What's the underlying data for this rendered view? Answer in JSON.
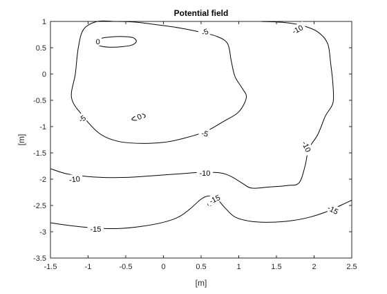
{
  "chart_data": {
    "type": "contour",
    "title": "Potential field",
    "xlabel": "[m]",
    "ylabel": "[m]",
    "xlim": [
      -1.5,
      2.5
    ],
    "ylim": [
      -3.5,
      1
    ],
    "xticks": [
      -1.5,
      -1,
      -0.5,
      0,
      0.5,
      1,
      1.5,
      2,
      2.5
    ],
    "yticks": [
      1,
      0.5,
      0,
      -0.5,
      -1,
      -1.5,
      -2,
      -2.5,
      -3,
      -3.5
    ],
    "xtick_labels": [
      "-1.5",
      "-1",
      "-0.5",
      "0",
      "0.5",
      "1",
      "1.5",
      "2",
      "2.5"
    ],
    "ytick_labels": [
      "1",
      "0.5",
      "0",
      "-0.5",
      "-1",
      "-1.5",
      "-2",
      "-2.5",
      "-3",
      "-3.5"
    ],
    "grid": false,
    "contours": [
      {
        "level": -5,
        "closed": true,
        "points": [
          [
            -0.88,
            1.0
          ],
          [
            -1.06,
            0.85
          ],
          [
            -1.13,
            0.5
          ],
          [
            -1.17,
            0.0
          ],
          [
            -1.22,
            -0.45
          ],
          [
            -1.08,
            -0.78
          ],
          [
            -0.85,
            -1.13
          ],
          [
            -0.6,
            -1.28
          ],
          [
            -0.3,
            -1.32
          ],
          [
            0.0,
            -1.3
          ],
          [
            0.25,
            -1.23
          ],
          [
            0.55,
            -1.1
          ],
          [
            0.8,
            -0.9
          ],
          [
            1.0,
            -0.72
          ],
          [
            1.1,
            -0.45
          ],
          [
            1.05,
            -0.28
          ],
          [
            0.95,
            -0.05
          ],
          [
            0.9,
            0.25
          ],
          [
            0.85,
            0.58
          ],
          [
            0.7,
            0.72
          ],
          [
            0.45,
            0.81
          ],
          [
            0.2,
            0.88
          ],
          [
            -0.1,
            0.94
          ],
          [
            -0.4,
            0.99
          ],
          [
            -0.65,
            1.0
          ]
        ]
      },
      {
        "level": -10,
        "closed": false,
        "points": [
          [
            -1.5,
            -1.8
          ],
          [
            -1.28,
            -1.9
          ],
          [
            -1.0,
            -1.95
          ],
          [
            -0.7,
            -1.97
          ],
          [
            -0.4,
            -1.96
          ],
          [
            -0.1,
            -1.93
          ],
          [
            0.2,
            -1.9
          ],
          [
            0.5,
            -1.87
          ],
          [
            0.75,
            -1.88
          ],
          [
            0.9,
            -1.95
          ],
          [
            1.05,
            -2.08
          ],
          [
            1.17,
            -2.17
          ],
          [
            1.4,
            -2.15
          ],
          [
            1.65,
            -2.12
          ],
          [
            1.8,
            -2.07
          ],
          [
            1.88,
            -1.75
          ],
          [
            1.93,
            -1.42
          ],
          [
            2.05,
            -1.15
          ],
          [
            2.15,
            -0.8
          ],
          [
            2.25,
            -0.55
          ],
          [
            2.25,
            -0.2
          ],
          [
            2.22,
            0.2
          ],
          [
            2.18,
            0.58
          ],
          [
            2.05,
            0.8
          ],
          [
            1.85,
            0.92
          ],
          [
            1.6,
            0.98
          ],
          [
            1.3,
            1.0
          ]
        ]
      },
      {
        "level": -15,
        "closed": false,
        "points": [
          [
            -1.5,
            -2.83
          ],
          [
            -1.2,
            -2.89
          ],
          [
            -0.9,
            -2.93
          ],
          [
            -0.6,
            -2.94
          ],
          [
            -0.3,
            -2.9
          ],
          [
            0.0,
            -2.82
          ],
          [
            0.2,
            -2.72
          ],
          [
            0.35,
            -2.57
          ],
          [
            0.5,
            -2.38
          ],
          [
            0.6,
            -2.32
          ],
          [
            0.7,
            -2.36
          ],
          [
            0.82,
            -2.55
          ],
          [
            0.95,
            -2.72
          ],
          [
            1.15,
            -2.8
          ],
          [
            1.4,
            -2.82
          ],
          [
            1.7,
            -2.79
          ],
          [
            1.95,
            -2.72
          ],
          [
            2.2,
            -2.6
          ],
          [
            2.35,
            -2.5
          ],
          [
            2.5,
            -2.4
          ]
        ]
      },
      {
        "level": 0,
        "closed": true,
        "points": [
          [
            -0.88,
            0.6
          ],
          [
            -0.82,
            0.68
          ],
          [
            -0.65,
            0.71
          ],
          [
            -0.5,
            0.71
          ],
          [
            -0.4,
            0.69
          ],
          [
            -0.36,
            0.62
          ],
          [
            -0.42,
            0.55
          ],
          [
            -0.55,
            0.52
          ],
          [
            -0.72,
            0.51
          ],
          [
            -0.85,
            0.54
          ]
        ]
      },
      {
        "level": 0,
        "closed": true,
        "points": [
          [
            -0.42,
            -0.86
          ],
          [
            -0.35,
            -0.78
          ],
          [
            -0.28,
            -0.76
          ],
          [
            -0.24,
            -0.8
          ],
          [
            -0.28,
            -0.85
          ],
          [
            -0.36,
            -0.88
          ]
        ]
      },
      {
        "level": -15,
        "closed": true,
        "points": [
          [
            0.59,
            -2.47
          ],
          [
            0.62,
            -2.43
          ],
          [
            0.65,
            -2.45
          ],
          [
            0.63,
            -2.5
          ],
          [
            0.6,
            -2.5
          ]
        ]
      }
    ],
    "contour_labels": [
      {
        "text": "-5",
        "x": 0.55,
        "y": 0.8,
        "angle": 22
      },
      {
        "text": "-5",
        "x": -1.08,
        "y": -0.85,
        "angle": 35
      },
      {
        "text": "-5",
        "x": 0.55,
        "y": -1.13,
        "angle": -12
      },
      {
        "text": "-10",
        "x": 1.78,
        "y": 0.85,
        "angle": 28
      },
      {
        "text": "-10",
        "x": -1.18,
        "y": -2.0,
        "angle": 6
      },
      {
        "text": "-10",
        "x": 0.55,
        "y": -1.88,
        "angle": 0
      },
      {
        "text": "-10",
        "x": 1.9,
        "y": -1.38,
        "angle": -65
      },
      {
        "text": "-15",
        "x": -0.9,
        "y": -2.95,
        "angle": 0
      },
      {
        "text": "-15",
        "x": 0.68,
        "y": -2.38,
        "angle": 25
      },
      {
        "text": "-15",
        "x": 2.25,
        "y": -2.58,
        "angle": -28
      },
      {
        "text": "0",
        "x": -0.87,
        "y": 0.62,
        "angle": 0
      },
      {
        "text": "0",
        "x": -0.32,
        "y": -0.81,
        "angle": 25
      }
    ]
  }
}
